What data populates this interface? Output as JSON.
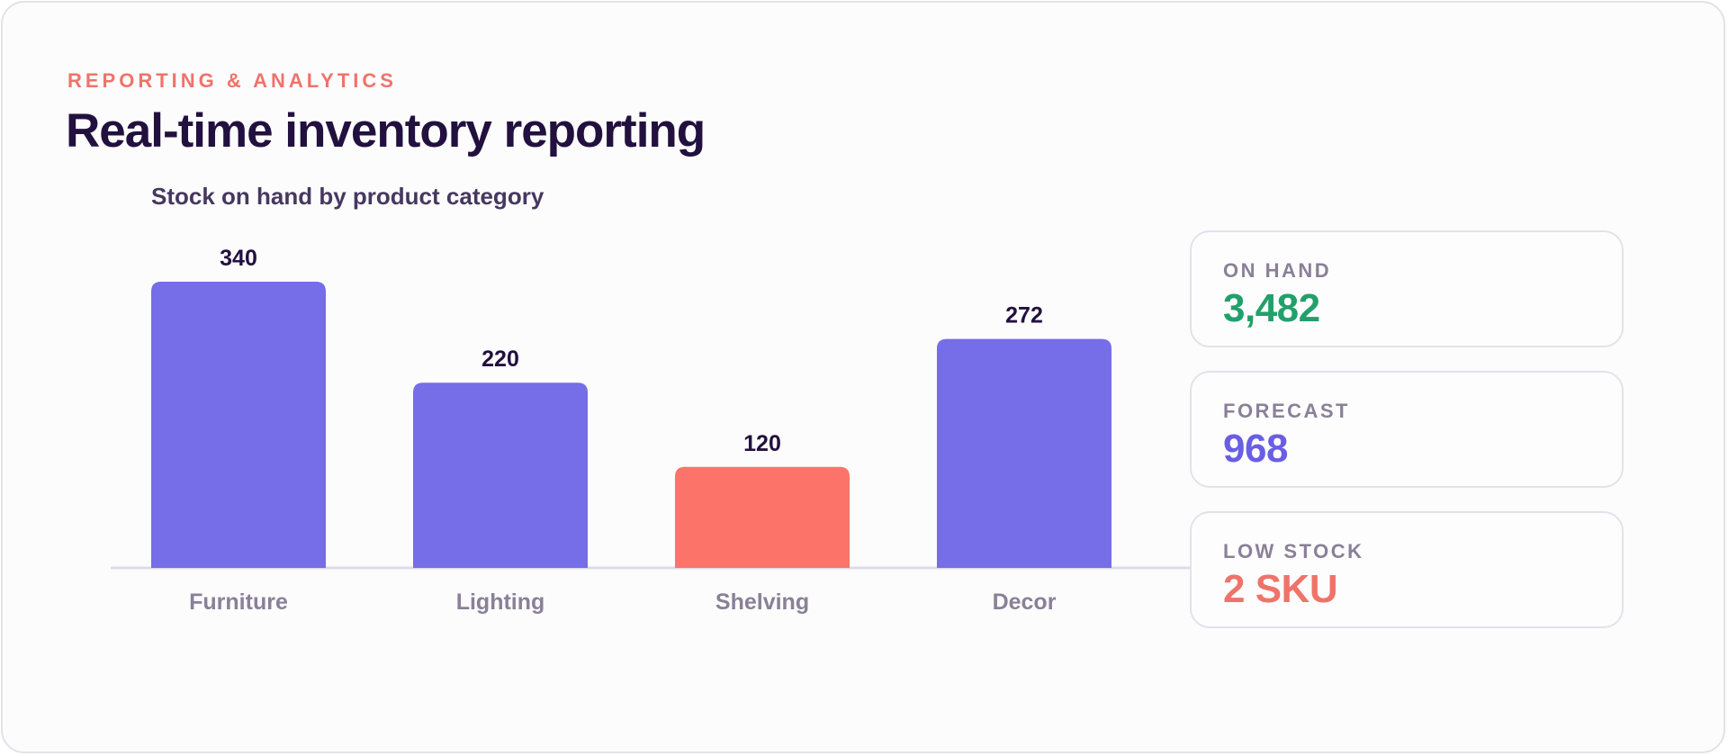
{
  "header": {
    "eyebrow": "REPORTING & ANALYTICS",
    "title": "Real-time inventory reporting"
  },
  "colors": {
    "bar_default": "#766de8",
    "bar_alert": "#fb7369",
    "on_hand": "#22a06b",
    "forecast": "#6a5ee3",
    "low_stock": "#f0736a"
  },
  "chart_data": {
    "type": "bar",
    "title": "Stock on hand by product category",
    "categories": [
      "Furniture",
      "Lighting",
      "Shelving",
      "Decor"
    ],
    "values": [
      340,
      220,
      120,
      272
    ],
    "highlighted": [
      "Shelving"
    ],
    "xlabel": "",
    "ylabel": "",
    "ylim": [
      0,
      340
    ],
    "grid": false,
    "legend": "none"
  },
  "stats": [
    {
      "label": "ON HAND",
      "value": "3,482"
    },
    {
      "label": "FORECAST",
      "value": "968"
    },
    {
      "label": "LOW STOCK",
      "value": "2 SKU"
    }
  ]
}
